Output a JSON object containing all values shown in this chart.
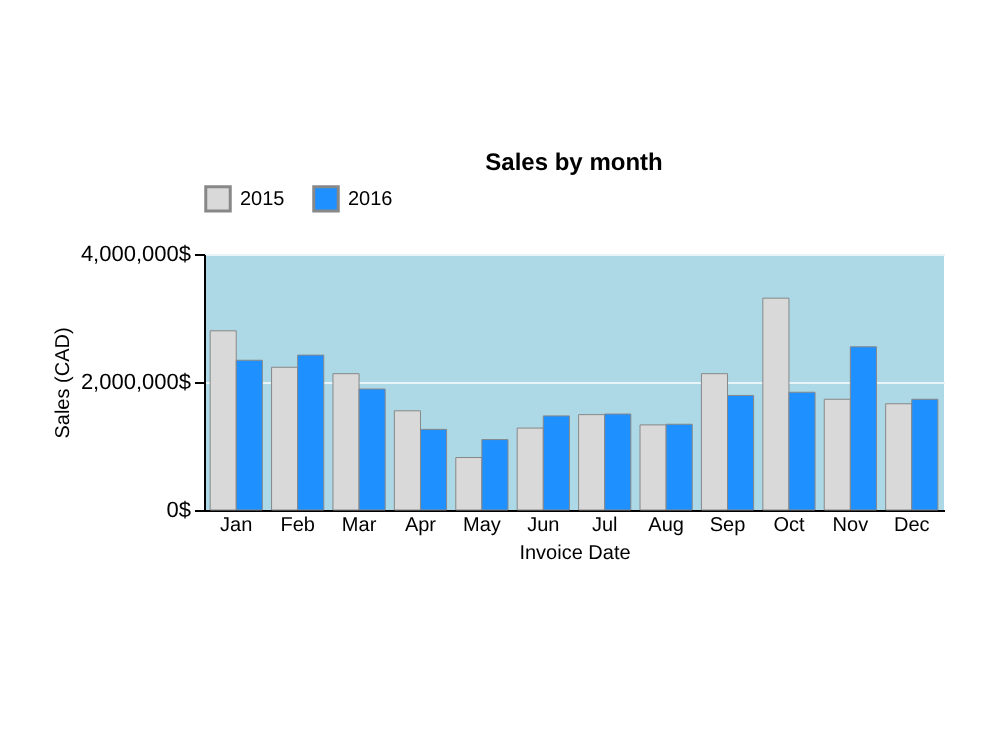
{
  "chart_data": {
    "type": "bar",
    "title": "Sales by month",
    "xlabel": "Invoice Date",
    "ylabel": "Sales (CAD)",
    "categories": [
      "Jan",
      "Feb",
      "Mar",
      "Apr",
      "May",
      "Jun",
      "Jul",
      "Aug",
      "Sep",
      "Oct",
      "Nov",
      "Dec"
    ],
    "series": [
      {
        "name": "2015",
        "color": "#d9d9d9",
        "values": [
          2800000,
          2230000,
          2130000,
          1550000,
          820000,
          1280000,
          1490000,
          1330000,
          2130000,
          3310000,
          1730000,
          1660000
        ]
      },
      {
        "name": "2016",
        "color": "#1e90ff",
        "values": [
          2340000,
          2420000,
          1890000,
          1260000,
          1100000,
          1470000,
          1500000,
          1340000,
          1790000,
          1840000,
          2550000,
          1730000
        ]
      }
    ],
    "ylim": [
      0,
      4000000
    ],
    "yticks": [
      {
        "value": 0,
        "label": "0$"
      },
      {
        "value": 2000000,
        "label": "2,000,000$"
      },
      {
        "value": 4000000,
        "label": "4,000,000$"
      }
    ],
    "grid": "y",
    "legend": "top left"
  }
}
